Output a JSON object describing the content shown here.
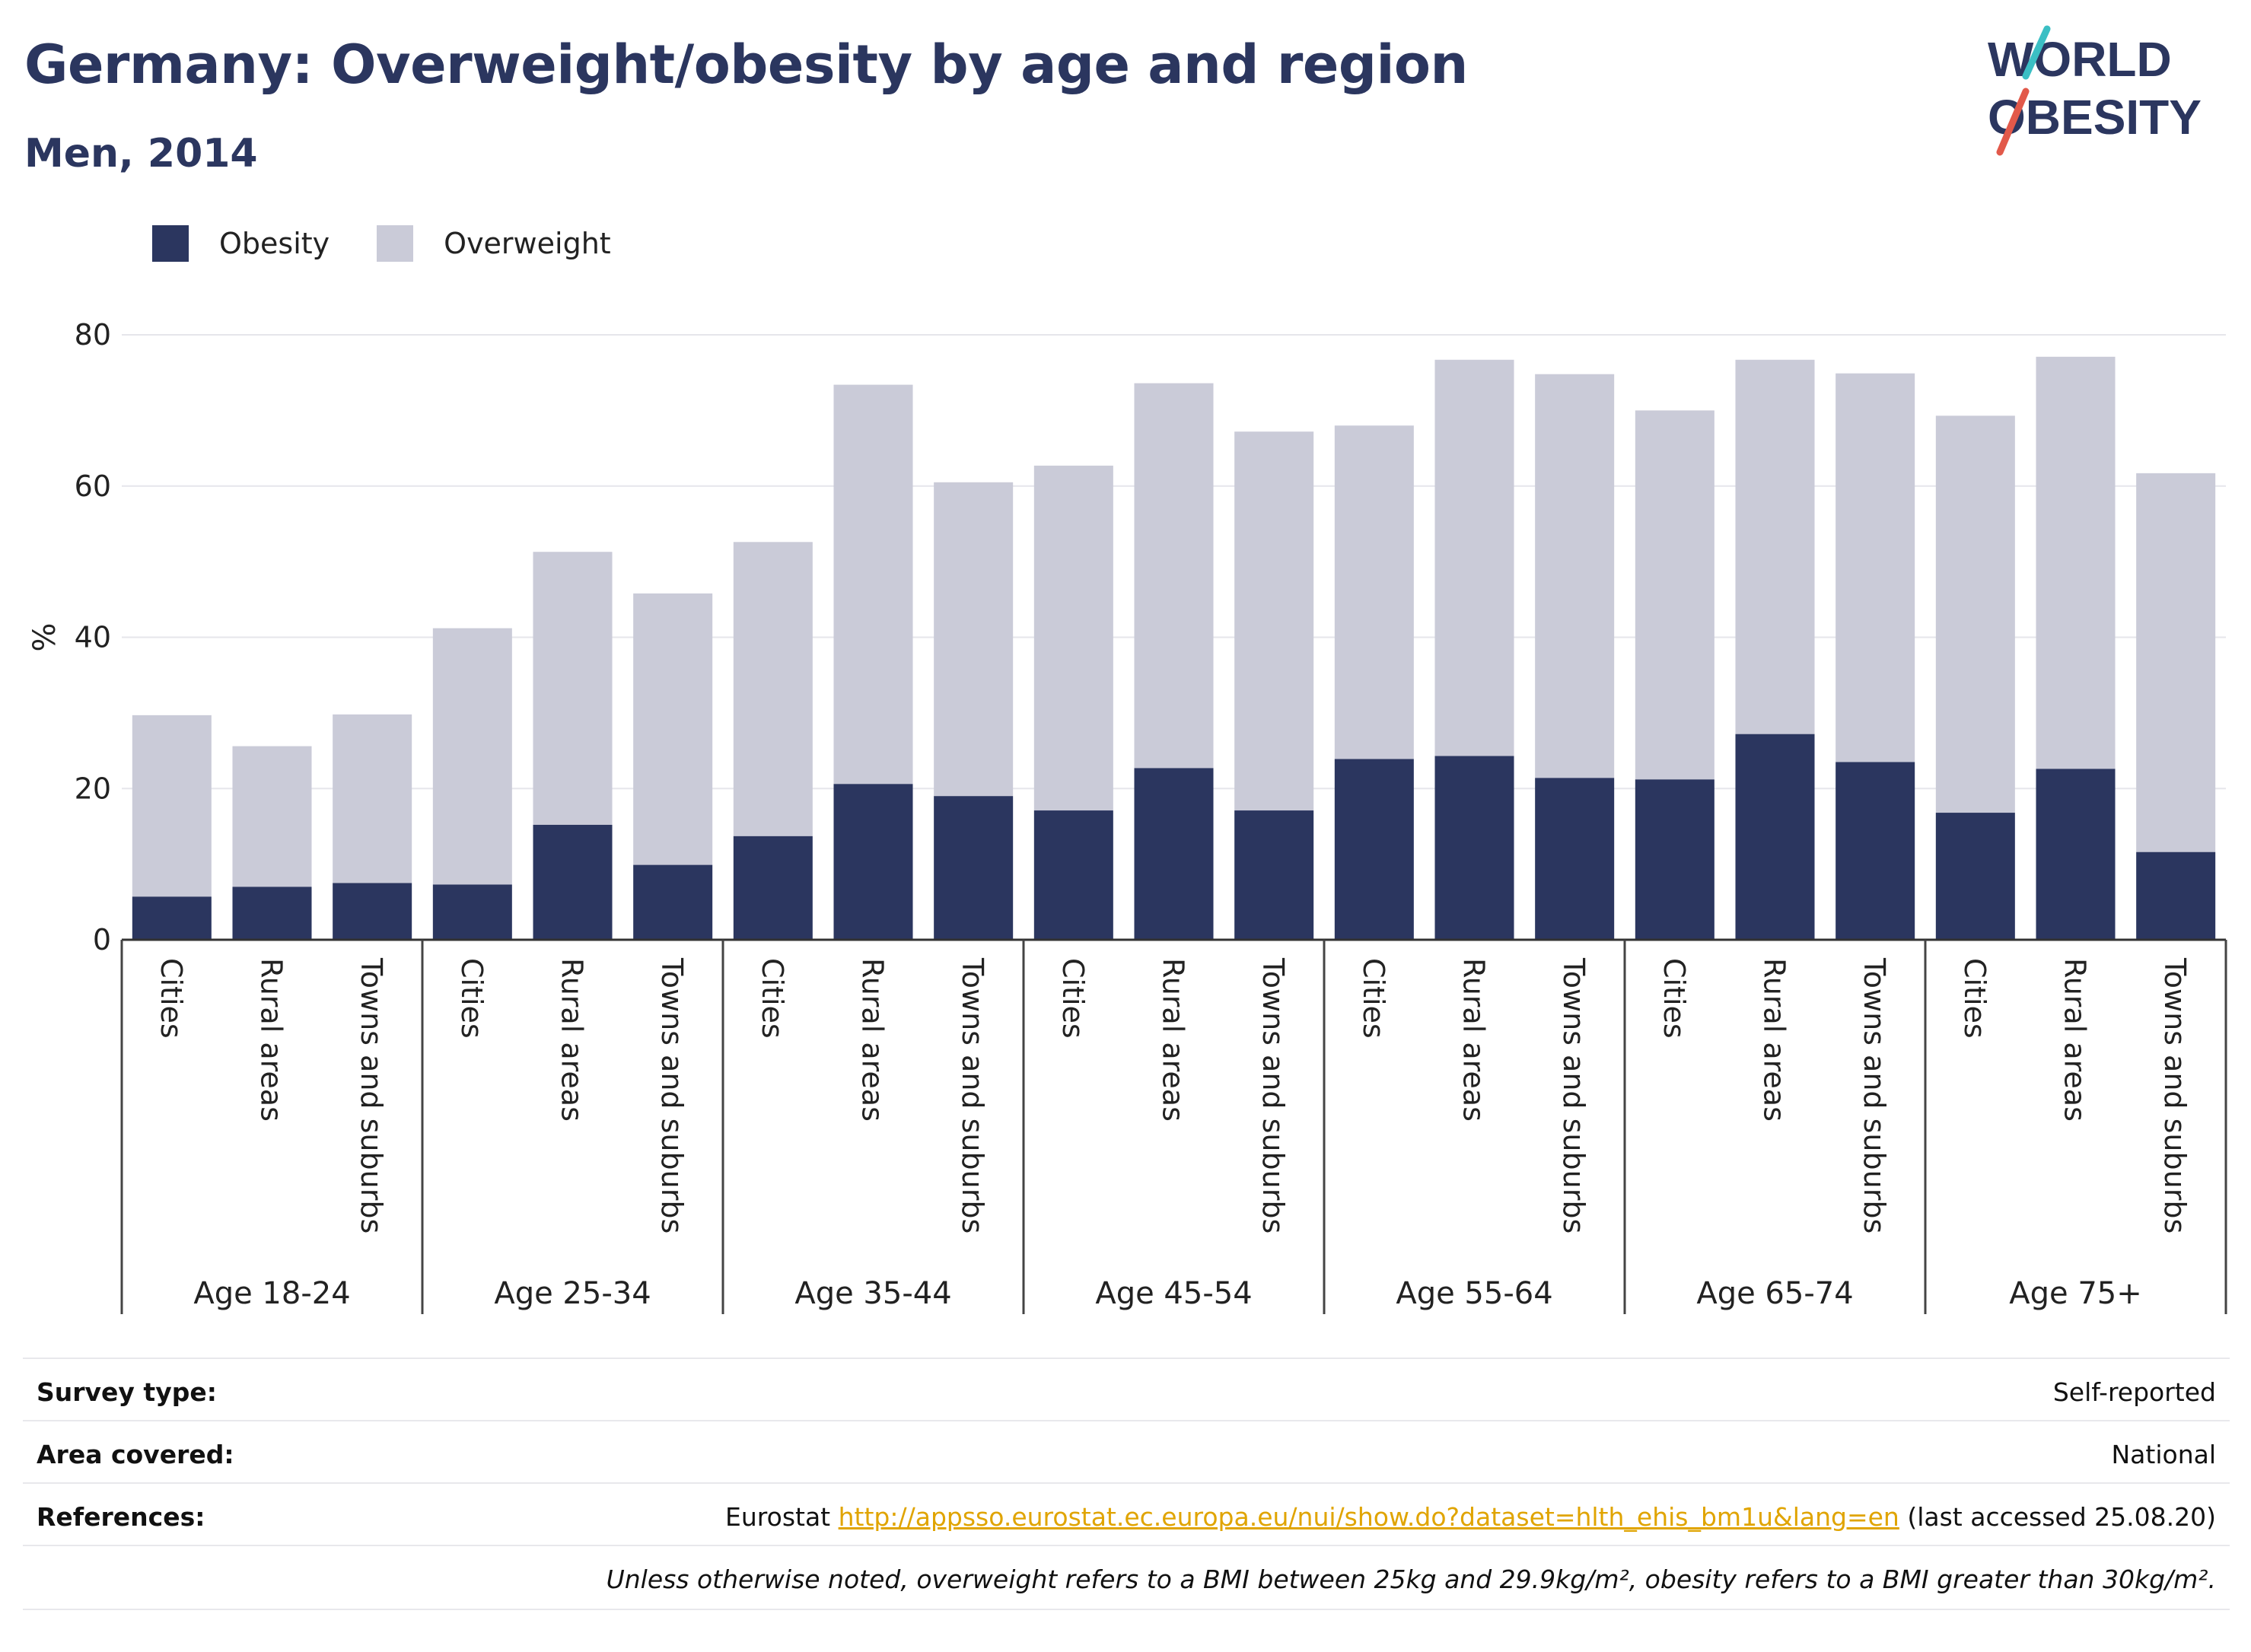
{
  "title": "Germany: Overweight/obesity by age and region",
  "subtitle": "Men, 2014",
  "logo": {
    "line1": "WORLD",
    "line2": "OBESITY"
  },
  "colors": {
    "obesity": "#2b365f",
    "overweight": "#cacbd8",
    "accent_teal": "#3bbfc4",
    "accent_red": "#e2594a",
    "link": "#e0a400"
  },
  "chart_data": {
    "type": "bar",
    "stacked": true,
    "ylabel": "%",
    "ylim": [
      0,
      80
    ],
    "yticks": [
      0,
      20,
      40,
      60,
      80
    ],
    "grid": true,
    "legend_placement": "top-left",
    "groups": [
      "Age 18-24",
      "Age 25-34",
      "Age 35-44",
      "Age 45-54",
      "Age 55-64",
      "Age 65-74",
      "Age 75+"
    ],
    "subcategories": [
      "Cities",
      "Rural areas",
      "Towns and suburbs"
    ],
    "series": [
      {
        "name": "Obesity",
        "values": [
          5.7,
          7,
          7.5,
          7.3,
          15.2,
          9.9,
          13.7,
          20.6,
          19,
          17.1,
          22.7,
          17.1,
          23.9,
          24.3,
          21.4,
          21.2,
          27.2,
          23.5,
          16.8,
          22.6,
          11.6
        ]
      },
      {
        "name": "Overweight",
        "values": [
          24,
          18.6,
          22.3,
          33.9,
          36.1,
          35.9,
          38.9,
          52.8,
          41.5,
          45.6,
          50.9,
          50.1,
          44.1,
          52.4,
          53.4,
          48.8,
          49.5,
          51.4,
          52.5,
          54.5,
          50.1
        ]
      }
    ]
  },
  "meta": {
    "survey_type_label": "Survey type:",
    "survey_type_value": "Self-reported",
    "area_label": "Area covered:",
    "area_value": "National",
    "references_label": "References:",
    "references_prefix": "Eurostat",
    "references_link": "http://appsso.eurostat.ec.europa.eu/nui/show.do?dataset=hlth_ehis_bm1u&lang=en",
    "references_suffix": "(last accessed 25.08.20)",
    "note": "Unless otherwise noted, overweight refers to a BMI between 25kg and 29.9kg/m², obesity refers to a BMI greater than 30kg/m²."
  }
}
